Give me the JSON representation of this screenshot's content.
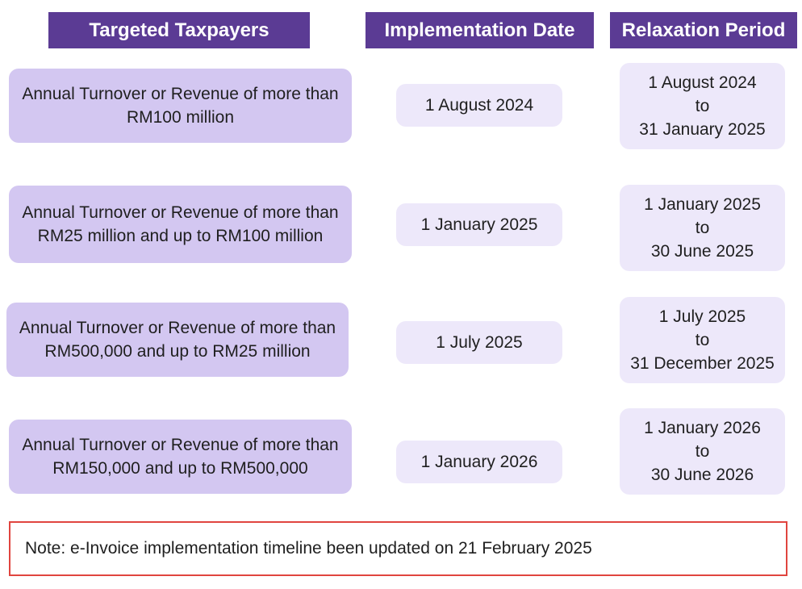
{
  "headers": {
    "taxpayers": "Targeted Taxpayers",
    "implementation_date": "Implementation Date",
    "relaxation_period": "Relaxation Period"
  },
  "rows": [
    {
      "taxpayer": "Annual Turnover or Revenue of more than RM100 million",
      "implementation_date": "1 August 2024",
      "relaxation_from": "1 August 2024",
      "relaxation_to_word": "to",
      "relaxation_until": "31 January 2025"
    },
    {
      "taxpayer": "Annual Turnover or Revenue of more than RM25 million and up to RM100 million",
      "implementation_date": "1 January 2025",
      "relaxation_from": "1 January 2025",
      "relaxation_to_word": "to",
      "relaxation_until": "30 June 2025"
    },
    {
      "taxpayer": "Annual Turnover or Revenue of more than RM500,000 and up to RM25 million",
      "implementation_date": "1 July 2025",
      "relaxation_from": "1 July 2025",
      "relaxation_to_word": "to",
      "relaxation_until": "31 December 2025"
    },
    {
      "taxpayer": "Annual Turnover or Revenue of more than RM150,000 and up to RM500,000",
      "implementation_date": "1 January 2026",
      "relaxation_from": "1 January 2026",
      "relaxation_to_word": "to",
      "relaxation_until": "30 June 2026"
    }
  ],
  "note": "Note: e-Invoice implementation timeline been updated on 21 February 2025",
  "colors": {
    "header_bg": "#5b3b94",
    "taxpayer_box": "#d3c7f1",
    "date_box": "#ede8fa",
    "note_border": "#e0453f"
  }
}
